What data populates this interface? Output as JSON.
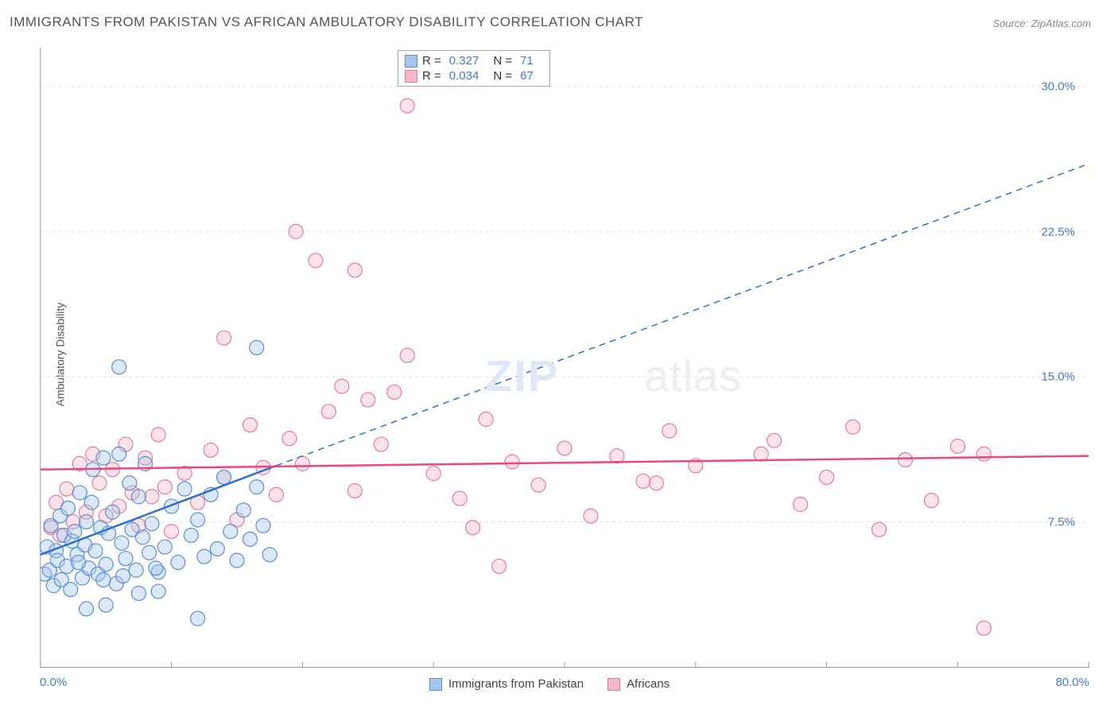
{
  "title": "IMMIGRANTS FROM PAKISTAN VS AFRICAN AMBULATORY DISABILITY CORRELATION CHART",
  "source_label": "Source:",
  "source_name": "ZipAtlas.com",
  "y_axis_label": "Ambulatory Disability",
  "watermark_bold": "ZIP",
  "watermark_light": "atlas",
  "chart": {
    "type": "scatter",
    "xlim": [
      0,
      80
    ],
    "ylim": [
      0,
      32
    ],
    "xticks": [
      0,
      10,
      20,
      30,
      40,
      50,
      60,
      70,
      80
    ],
    "xtick_labels_show": [
      0,
      80
    ],
    "xtick_label_map": {
      "0": "0.0%",
      "80": "80.0%"
    },
    "yticks": [
      7.5,
      15.0,
      22.5,
      30.0
    ],
    "ytick_labels": [
      "7.5%",
      "15.0%",
      "22.5%",
      "30.0%"
    ],
    "grid_color": "#e0e0e0",
    "axis_color": "#999999",
    "marker_radius": 9,
    "marker_stroke_width": 1.2,
    "marker_fill_opacity": 0.4,
    "series": [
      {
        "name": "Immigrants from Pakistan",
        "color_fill": "#a8c6ec",
        "color_stroke": "#5a8fd6",
        "R": "0.327",
        "N": "71",
        "regression": {
          "x1": 0,
          "y1": 5.8,
          "x2": 18,
          "y2": 10.4,
          "dashed_ext": {
            "x2": 80,
            "y2": 26.0
          },
          "width": 2.5,
          "color": "#2f6fd0"
        },
        "points": [
          [
            0.3,
            4.8
          ],
          [
            0.5,
            6.2
          ],
          [
            0.7,
            5.0
          ],
          [
            0.8,
            7.3
          ],
          [
            1.0,
            4.2
          ],
          [
            1.2,
            6.0
          ],
          [
            1.3,
            5.5
          ],
          [
            1.5,
            7.8
          ],
          [
            1.6,
            4.5
          ],
          [
            1.8,
            6.8
          ],
          [
            2.0,
            5.2
          ],
          [
            2.1,
            8.2
          ],
          [
            2.3,
            4.0
          ],
          [
            2.4,
            6.5
          ],
          [
            2.6,
            7.0
          ],
          [
            2.8,
            5.8
          ],
          [
            3.0,
            9.0
          ],
          [
            3.2,
            4.6
          ],
          [
            3.4,
            6.3
          ],
          [
            3.5,
            7.5
          ],
          [
            3.7,
            5.1
          ],
          [
            3.9,
            8.5
          ],
          [
            4.0,
            10.2
          ],
          [
            4.2,
            6.0
          ],
          [
            4.4,
            4.8
          ],
          [
            4.6,
            7.2
          ],
          [
            4.8,
            10.8
          ],
          [
            5.0,
            5.3
          ],
          [
            5.2,
            6.9
          ],
          [
            5.5,
            8.0
          ],
          [
            5.8,
            4.3
          ],
          [
            6.0,
            11.0
          ],
          [
            6.2,
            6.4
          ],
          [
            6.5,
            5.6
          ],
          [
            6.8,
            9.5
          ],
          [
            7.0,
            7.1
          ],
          [
            7.3,
            5.0
          ],
          [
            7.5,
            8.8
          ],
          [
            7.8,
            6.7
          ],
          [
            8.0,
            10.5
          ],
          [
            8.3,
            5.9
          ],
          [
            8.5,
            7.4
          ],
          [
            9.0,
            4.9
          ],
          [
            6.0,
            15.5
          ],
          [
            9.5,
            6.2
          ],
          [
            10.0,
            8.3
          ],
          [
            10.5,
            5.4
          ],
          [
            11.0,
            9.2
          ],
          [
            11.5,
            6.8
          ],
          [
            12.0,
            7.6
          ],
          [
            12.5,
            5.7
          ],
          [
            13.0,
            8.9
          ],
          [
            13.5,
            6.1
          ],
          [
            14.0,
            9.8
          ],
          [
            14.5,
            7.0
          ],
          [
            15.0,
            5.5
          ],
          [
            15.5,
            8.1
          ],
          [
            16.0,
            6.6
          ],
          [
            16.5,
            9.3
          ],
          [
            17.0,
            7.3
          ],
          [
            17.5,
            5.8
          ],
          [
            16.5,
            16.5
          ],
          [
            12.0,
            2.5
          ],
          [
            5.0,
            3.2
          ],
          [
            7.5,
            3.8
          ],
          [
            3.5,
            3.0
          ],
          [
            9.0,
            3.9
          ],
          [
            4.8,
            4.5
          ],
          [
            6.3,
            4.7
          ],
          [
            8.8,
            5.1
          ],
          [
            2.9,
            5.4
          ]
        ]
      },
      {
        "name": "Africans",
        "color_fill": "#f5b8c9",
        "color_stroke": "#e67a9a",
        "R": "0.034",
        "N": "67",
        "regression": {
          "x1": 0,
          "y1": 10.2,
          "x2": 80,
          "y2": 10.9,
          "width": 2.5,
          "color": "#e8487e"
        },
        "points": [
          [
            0.8,
            7.2
          ],
          [
            1.2,
            8.5
          ],
          [
            1.5,
            6.8
          ],
          [
            2.0,
            9.2
          ],
          [
            2.5,
            7.5
          ],
          [
            3.0,
            10.5
          ],
          [
            3.5,
            8.0
          ],
          [
            4.0,
            11.0
          ],
          [
            4.5,
            9.5
          ],
          [
            5.0,
            7.8
          ],
          [
            5.5,
            10.2
          ],
          [
            6.0,
            8.3
          ],
          [
            6.5,
            11.5
          ],
          [
            7.0,
            9.0
          ],
          [
            7.5,
            7.3
          ],
          [
            8.0,
            10.8
          ],
          [
            8.5,
            8.8
          ],
          [
            9.0,
            12.0
          ],
          [
            9.5,
            9.3
          ],
          [
            10.0,
            7.0
          ],
          [
            11.0,
            10.0
          ],
          [
            12.0,
            8.5
          ],
          [
            13.0,
            11.2
          ],
          [
            14.0,
            9.8
          ],
          [
            15.0,
            7.6
          ],
          [
            16.0,
            12.5
          ],
          [
            17.0,
            10.3
          ],
          [
            18.0,
            8.9
          ],
          [
            19.0,
            11.8
          ],
          [
            20.0,
            10.5
          ],
          [
            22.0,
            13.2
          ],
          [
            24.0,
            9.1
          ],
          [
            26.0,
            11.5
          ],
          [
            28.0,
            16.1
          ],
          [
            30.0,
            10.0
          ],
          [
            32.0,
            8.7
          ],
          [
            34.0,
            12.8
          ],
          [
            36.0,
            10.6
          ],
          [
            38.0,
            9.4
          ],
          [
            40.0,
            11.3
          ],
          [
            42.0,
            7.8
          ],
          [
            44.0,
            10.9
          ],
          [
            46.0,
            9.6
          ],
          [
            48.0,
            12.2
          ],
          [
            50.0,
            10.4
          ],
          [
            33.0,
            7.2
          ],
          [
            35.0,
            5.2
          ],
          [
            56.0,
            11.7
          ],
          [
            58.0,
            8.4
          ],
          [
            60.0,
            9.8
          ],
          [
            62.0,
            12.4
          ],
          [
            64.0,
            7.1
          ],
          [
            66.0,
            10.7
          ],
          [
            68.0,
            8.6
          ],
          [
            70.0,
            11.4
          ],
          [
            72.0,
            11.0
          ],
          [
            72.0,
            2.0
          ],
          [
            28.0,
            29.0
          ],
          [
            24.0,
            20.5
          ],
          [
            14.0,
            17.0
          ],
          [
            19.5,
            22.5
          ],
          [
            21.0,
            21.0
          ],
          [
            23.0,
            14.5
          ],
          [
            25.0,
            13.8
          ],
          [
            27.0,
            14.2
          ],
          [
            47.0,
            9.5
          ],
          [
            55.0,
            11.0
          ]
        ]
      }
    ]
  }
}
